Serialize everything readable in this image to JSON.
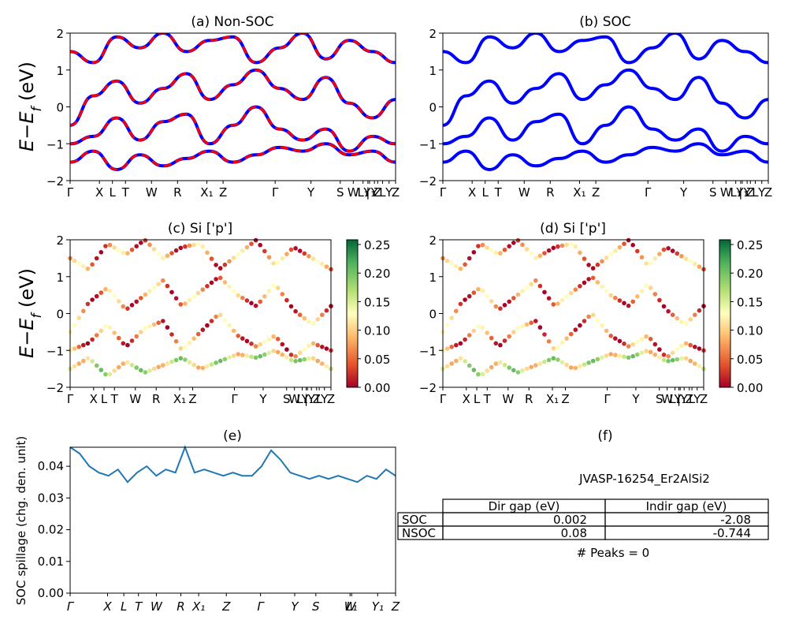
{
  "figure": {
    "panels": {
      "a": {
        "title": "(a) Non-SOC",
        "ylabel": "$E-E_f$ (eV)"
      },
      "b": {
        "title": "(b) SOC"
      },
      "c": {
        "title": "(c)  Si ['p']",
        "ylabel": "$E-E_f$ (eV)"
      },
      "d": {
        "title": "(d) Si ['p']"
      },
      "e": {
        "title": "(e)",
        "ylabel": "SOC spillage (chg. den. unit)"
      },
      "f": {
        "title": "(f)",
        "material": "JVASP-16254_Er2AlSi2",
        "table": {
          "headers": [
            "",
            "Dir gap (eV)",
            "Indir gap (eV)"
          ],
          "rows": [
            {
              "label": "SOC",
              "dir": "0.002",
              "indir": "-2.08"
            },
            {
              "label": "NSOC",
              "dir": "0.08",
              "indir": "-0.744"
            }
          ]
        },
        "peaks": "# Peaks = 0"
      }
    },
    "band_ticks": [
      "Γ",
      "X",
      "L",
      "T",
      "W",
      "R",
      "X₁",
      "Z",
      "Γ",
      "Y",
      "S",
      "W",
      "L₁",
      "Y₁",
      "Z",
      "|",
      "Y",
      "L",
      "Y",
      "Z"
    ],
    "band_yticks": [
      "2",
      "1",
      "0",
      "−1",
      "−2"
    ],
    "colorbar": {
      "ticks": [
        "0.25",
        "0.20",
        "0.15",
        "0.10",
        "0.05",
        "0.00"
      ],
      "colormap": "RdYlGn"
    },
    "colors": {
      "nsoc_band": "#0000ff",
      "nsoc_dash": "#ff0000",
      "soc_band": "#0000ff",
      "spillage_line": "#1f77b4"
    }
  },
  "chart_data": [
    {
      "panel": "a",
      "type": "line",
      "ylim": [
        -2,
        2
      ],
      "x_ticks": [
        "Γ",
        "X",
        "L",
        "T",
        "W",
        "R",
        "X₁",
        "Z",
        "Γ",
        "Y",
        "S",
        "W",
        "L₁",
        "Y₁",
        "Z"
      ],
      "series": [
        {
          "name": "NSOC bands",
          "y": [
            1.5,
            1.2,
            1.9,
            1.6,
            2.0,
            1.5,
            1.8,
            1.9,
            1.2,
            1.6,
            2.0,
            1.3,
            1.8,
            1.5,
            1.2
          ]
        },
        {
          "y": [
            -0.5,
            0.3,
            0.7,
            0.1,
            0.5,
            0.9,
            0.2,
            0.6,
            1.0,
            0.5,
            0.2,
            0.8,
            0.1,
            -0.3,
            0.2
          ]
        },
        {
          "y": [
            -1.0,
            -0.8,
            -0.3,
            -0.9,
            -0.4,
            -0.2,
            -1.0,
            -0.5,
            0.0,
            -0.6,
            -0.9,
            -0.6,
            -1.2,
            -0.8,
            -1.0
          ]
        },
        {
          "y": [
            -1.5,
            -1.2,
            -1.7,
            -1.3,
            -1.6,
            -1.4,
            -1.2,
            -1.5,
            -1.3,
            -1.1,
            -1.2,
            -1.0,
            -1.3,
            -1.2,
            -1.5
          ]
        }
      ]
    },
    {
      "panel": "b",
      "type": "line",
      "ylim": [
        -2,
        2
      ],
      "x_ticks": [
        "Γ",
        "X",
        "L",
        "T",
        "W",
        "R",
        "X₁",
        "Z",
        "Γ",
        "Y",
        "S",
        "W",
        "L₁",
        "Y₁",
        "Z"
      ],
      "series": [
        {
          "name": "SOC bands",
          "y": [
            1.5,
            1.2,
            1.9,
            1.6,
            2.0,
            1.5,
            1.8,
            1.9,
            1.2,
            1.6,
            2.0,
            1.3,
            1.8,
            1.5,
            1.2
          ]
        },
        {
          "y": [
            -0.5,
            0.3,
            0.7,
            0.1,
            0.5,
            0.9,
            0.2,
            0.6,
            1.0,
            0.5,
            0.2,
            0.8,
            0.1,
            -0.3,
            0.2
          ]
        },
        {
          "y": [
            -1.0,
            -0.8,
            -0.3,
            -0.9,
            -0.4,
            -0.2,
            -1.0,
            -0.5,
            0.0,
            -0.6,
            -0.9,
            -0.6,
            -1.2,
            -0.8,
            -1.0
          ]
        },
        {
          "y": [
            -1.5,
            -1.2,
            -1.7,
            -1.3,
            -1.6,
            -1.4,
            -1.2,
            -1.5,
            -1.3,
            -1.1,
            -1.2,
            -1.0,
            -1.3,
            -1.2,
            -1.5
          ]
        }
      ]
    },
    {
      "panel": "e",
      "type": "line",
      "ylim": [
        0.0,
        0.046
      ],
      "yticks": [
        "0.04",
        "0.03",
        "0.02",
        "0.01",
        "0.00"
      ],
      "x_ticks": [
        "Γ",
        "X",
        "L",
        "T",
        "W",
        "R",
        "X₁",
        "Z",
        "Γ",
        "Y",
        "S",
        "W",
        "L₁",
        "Y₁",
        "Z"
      ],
      "series": [
        {
          "name": "SOC spillage",
          "y": [
            0.046,
            0.044,
            0.04,
            0.038,
            0.037,
            0.039,
            0.035,
            0.038,
            0.04,
            0.037,
            0.039,
            0.038,
            0.046,
            0.038,
            0.039,
            0.038,
            0.037,
            0.038,
            0.037,
            0.037,
            0.04,
            0.045,
            0.042,
            0.038,
            0.037,
            0.036,
            0.037,
            0.036,
            0.037,
            0.036,
            0.035,
            0.037,
            0.036,
            0.039,
            0.037
          ]
        }
      ]
    }
  ]
}
